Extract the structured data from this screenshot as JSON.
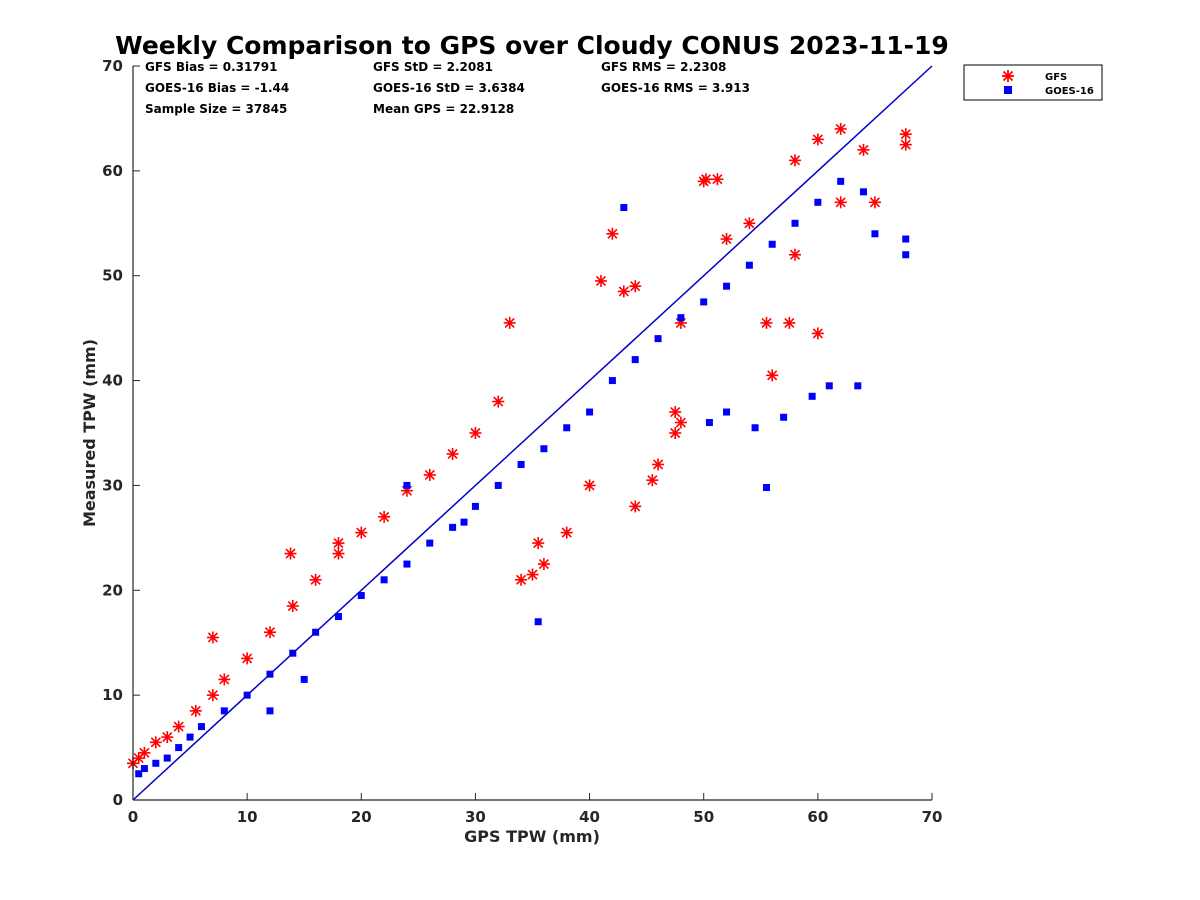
{
  "chart_data": {
    "type": "scatter",
    "title": "Weekly Comparison to GPS over Cloudy CONUS 2023-11-19",
    "xlabel": "GPS TPW (mm)",
    "ylabel": "Measured TPW (mm)",
    "xlim": [
      0,
      70
    ],
    "ylim": [
      0,
      70
    ],
    "xticks": [
      "0",
      "10",
      "20",
      "30",
      "40",
      "50",
      "60",
      "70"
    ],
    "yticks": [
      "0",
      "10",
      "20",
      "30",
      "40",
      "50",
      "60",
      "70"
    ],
    "grid": false,
    "legend_position": "outside top-right",
    "stats": [
      [
        "GFS Bias = 0.31791",
        "GFS StD = 2.2081",
        "GFS RMS = 2.2308"
      ],
      [
        "GOES-16 Bias = -1.44",
        "GOES-16 StD = 3.6384",
        "GOES-16 RMS = 3.913"
      ],
      [
        "Sample Size = 37845",
        "Mean GPS = 22.9128",
        ""
      ]
    ],
    "reference_line": {
      "x": [
        0,
        70
      ],
      "y": [
        0,
        70
      ],
      "color": "#0000cc"
    },
    "series": [
      {
        "name": "GFS",
        "marker": "asterisk",
        "color": "#ff0000",
        "x": [
          0,
          0.5,
          1.0,
          2.0,
          3.0,
          4.0,
          5.5,
          7.0,
          8.0,
          10.0,
          12.0,
          14.0,
          16.0,
          18.0,
          20.0,
          22.0,
          24.0,
          26.0,
          28.0,
          30.0,
          32.0,
          33.0,
          35.0,
          36.0,
          38.0,
          40.0,
          42.0,
          44.0,
          46.0,
          48.0,
          50.0,
          52.0,
          54.0,
          56.0,
          58.0,
          60.0,
          62.0,
          64.0,
          65.0,
          67.7,
          67.7,
          41.0,
          43.0,
          47.5,
          47.5,
          35.5,
          34.0,
          44.0,
          45.5,
          50.2,
          51.2,
          48.0,
          62.0,
          60.0,
          57.5,
          55.5,
          58.0,
          13.8,
          7.0,
          18.0
        ],
        "y": [
          3.5,
          4.0,
          4.5,
          5.5,
          6.0,
          7.0,
          8.5,
          10.0,
          11.5,
          13.5,
          16.0,
          18.5,
          21.0,
          23.5,
          25.5,
          27.0,
          29.5,
          31.0,
          33.0,
          35.0,
          38.0,
          45.5,
          21.5,
          22.5,
          25.5,
          30.0,
          54.0,
          49.0,
          32.0,
          36.0,
          59.0,
          53.5,
          55.0,
          40.5,
          61.0,
          63.0,
          64.0,
          62.0,
          57.0,
          63.5,
          62.5,
          49.5,
          48.5,
          37.0,
          35.0,
          24.5,
          21.0,
          28.0,
          30.5,
          59.2,
          59.2,
          45.5,
          57.0,
          44.5,
          45.5,
          45.5,
          52.0,
          23.5,
          15.5,
          24.5
        ]
      },
      {
        "name": "GOES-16",
        "marker": "square",
        "color": "#0000ff",
        "x": [
          0.5,
          1.0,
          2.0,
          3.0,
          4.0,
          5.0,
          6.0,
          8.0,
          10.0,
          12.0,
          14.0,
          16.0,
          18.0,
          20.0,
          22.0,
          24.0,
          26.0,
          28.0,
          30.0,
          32.0,
          34.0,
          36.0,
          38.0,
          40.0,
          42.0,
          44.0,
          46.0,
          48.0,
          50.0,
          52.0,
          54.0,
          56.0,
          58.0,
          60.0,
          62.0,
          64.0,
          65.0,
          67.7,
          67.7,
          55.5,
          57.0,
          59.5,
          61.0,
          63.5,
          52.0,
          50.5,
          54.5,
          43.0,
          35.5,
          29.0,
          24.0,
          15.0,
          12.0
        ],
        "y": [
          2.5,
          3.0,
          3.5,
          4.0,
          5.0,
          6.0,
          7.0,
          8.5,
          10.0,
          12.0,
          14.0,
          16.0,
          17.5,
          19.5,
          21.0,
          22.5,
          24.5,
          26.0,
          28.0,
          30.0,
          32.0,
          33.5,
          35.5,
          37.0,
          40.0,
          42.0,
          44.0,
          46.0,
          47.5,
          49.0,
          51.0,
          53.0,
          55.0,
          57.0,
          59.0,
          58.0,
          54.0,
          53.5,
          52.0,
          29.8,
          36.5,
          38.5,
          39.5,
          39.5,
          37.0,
          36.0,
          35.5,
          56.5,
          17.0,
          26.5,
          30.0,
          11.5,
          8.5
        ]
      }
    ]
  }
}
